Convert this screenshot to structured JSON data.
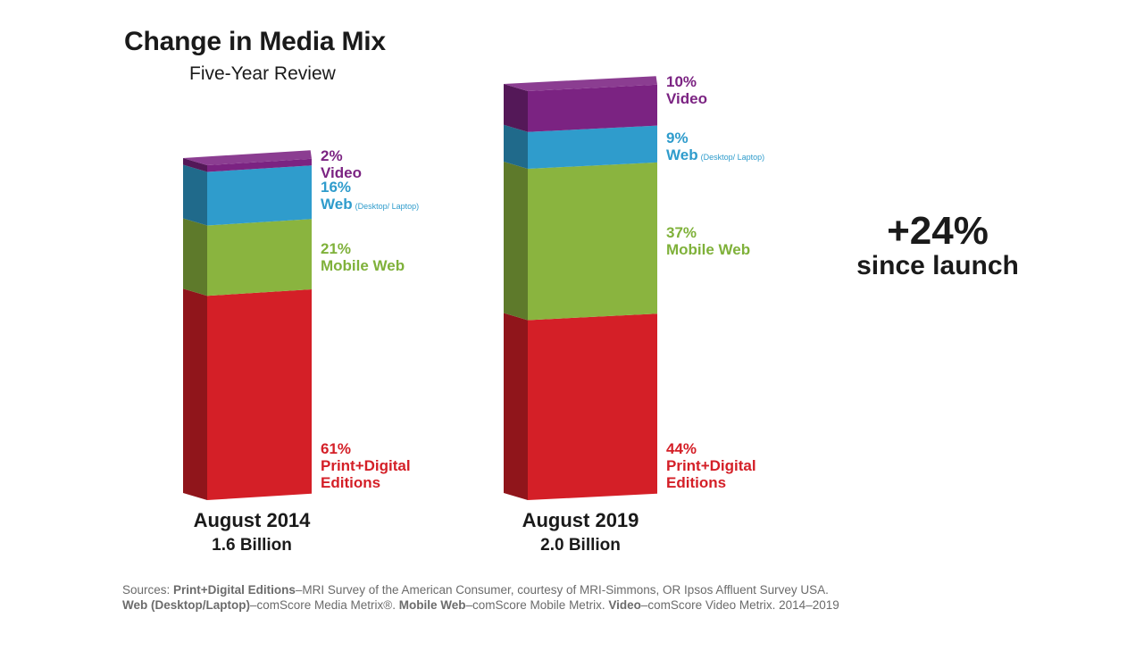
{
  "chart_data": {
    "type": "bar",
    "stacked": true,
    "title": "Change in Media Mix",
    "subtitle": "Five-Year Review",
    "categories": [
      {
        "name": "August 2014",
        "total_label": "1.6 Billion"
      },
      {
        "name": "August 2019",
        "total_label": "2.0 Billion"
      }
    ],
    "series": [
      {
        "name": "Print+Digital Editions",
        "label_lines": "Print+Digital\nEditions",
        "note": "",
        "color": "#d41f27",
        "values": [
          61,
          44
        ],
        "labels": [
          "61%",
          "44%"
        ]
      },
      {
        "name": "Mobile Web",
        "label_lines": "Mobile Web",
        "note": "",
        "color": "#8ab43f",
        "values": [
          21,
          37
        ],
        "labels": [
          "21%",
          "37%"
        ]
      },
      {
        "name": "Web",
        "label_lines": "Web",
        "note": "(Desktop/ Laptop)",
        "color": "#2f9ccc",
        "values": [
          16,
          9
        ],
        "labels": [
          "16%",
          "9%"
        ]
      },
      {
        "name": "Video",
        "label_lines": "Video",
        "note": "",
        "color": "#7b2382",
        "values": [
          2,
          10
        ],
        "labels": [
          "2%",
          "10%"
        ]
      }
    ],
    "callout": {
      "value": "+24%",
      "text": "since launch"
    }
  },
  "sources": {
    "line1": [
      {
        "text": "Sources: ",
        "bold": false
      },
      {
        "text": "Print+Digital Editions",
        "bold": true
      },
      {
        "text": "–MRI Survey of the American Consumer, courtesy of MRI-Simmons, OR Ipsos Affluent Survey USA.",
        "bold": false
      }
    ],
    "line2": [
      {
        "text": "Web (Desktop/Laptop)",
        "bold": true
      },
      {
        "text": "–comScore Media Metrix®. ",
        "bold": false
      },
      {
        "text": "Mobile Web",
        "bold": true
      },
      {
        "text": "–comScore Mobile Metrix. ",
        "bold": false
      },
      {
        "text": "Video",
        "bold": true
      },
      {
        "text": "–comScore Video Metrix. 2014–2019",
        "bold": false
      }
    ]
  }
}
